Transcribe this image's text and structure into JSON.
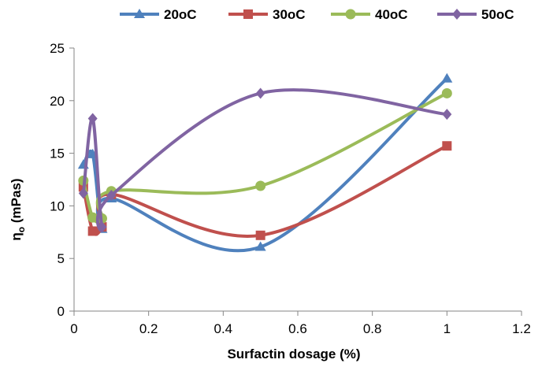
{
  "chart_data": {
    "type": "line",
    "title": "",
    "xlabel": "Surfactin dosage (%)",
    "ylabel_main": "η",
    "ylabel_sub": "o",
    "ylabel_rest": " (mPas)",
    "xlim": [
      0,
      1.2
    ],
    "ylim": [
      0,
      25
    ],
    "xticks": [
      0,
      0.2,
      0.4,
      0.6,
      0.8,
      1,
      1.2
    ],
    "xtick_labels": [
      "0",
      "0.2",
      "0.4",
      "0.6",
      "0.8",
      "1",
      "1.2"
    ],
    "yticks": [
      0,
      5,
      10,
      15,
      20,
      25
    ],
    "ytick_labels": [
      "0",
      "5",
      "10",
      "15",
      "20",
      "25"
    ],
    "grid": false,
    "smooth": true,
    "legend_position": "top",
    "series": [
      {
        "name": "20oC",
        "color": "#4F81BD",
        "marker": "triangle",
        "x": [
          0.025,
          0.05,
          0.075,
          0.1,
          0.5,
          1.0
        ],
        "y": [
          13.9,
          14.9,
          7.8,
          10.7,
          6.1,
          22.1
        ]
      },
      {
        "name": "30oC",
        "color": "#C0504D",
        "marker": "square",
        "x": [
          0.025,
          0.05,
          0.075,
          0.1,
          0.5,
          1.0
        ],
        "y": [
          11.8,
          7.6,
          8.0,
          11.1,
          7.2,
          15.7
        ]
      },
      {
        "name": "40oC",
        "color": "#9BBB59",
        "marker": "circle",
        "x": [
          0.025,
          0.05,
          0.075,
          0.1,
          0.5,
          1.0
        ],
        "y": [
          12.4,
          8.9,
          8.8,
          11.4,
          11.9,
          20.7
        ]
      },
      {
        "name": "50oC",
        "color": "#8064A2",
        "marker": "diamond",
        "x": [
          0.025,
          0.05,
          0.075,
          0.1,
          0.5,
          1.0
        ],
        "y": [
          11.2,
          18.3,
          8.0,
          11.0,
          20.7,
          18.7
        ]
      }
    ]
  }
}
